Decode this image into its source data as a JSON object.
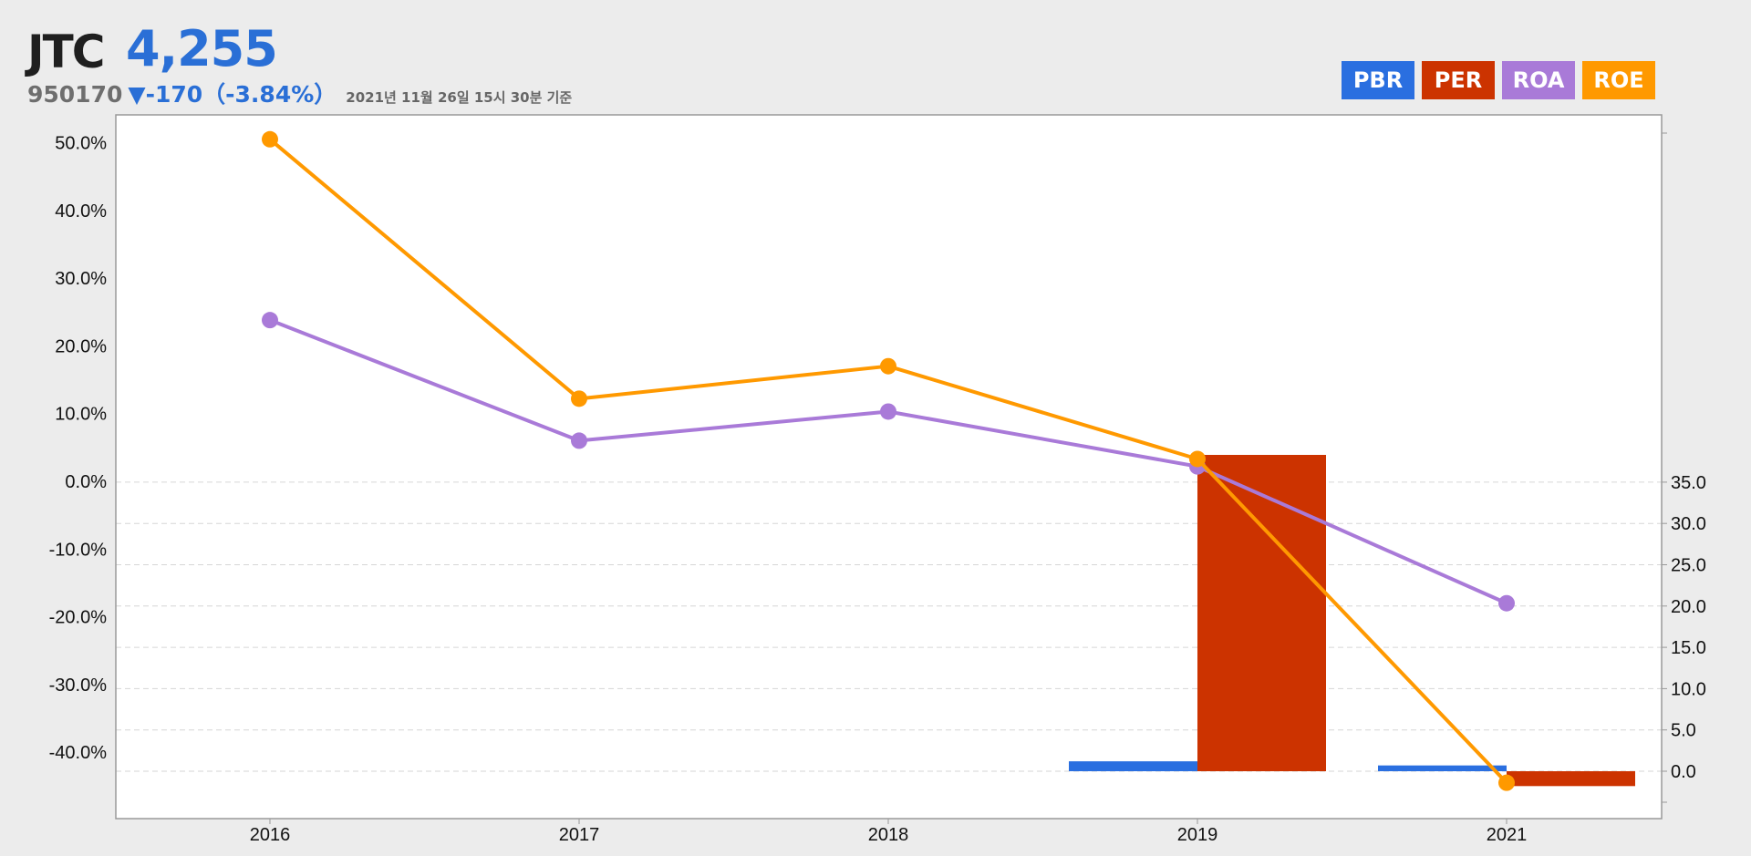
{
  "header": {
    "name": "JTC",
    "price": "4,255",
    "code": "950170",
    "change": "▼-170（-3.84%）",
    "as_of": "2021년 11월 26일 15시 30분 기준"
  },
  "legend": [
    {
      "label": "PBR",
      "color": "#2a6fe0"
    },
    {
      "label": "PER",
      "color": "#cc3300"
    },
    {
      "label": "ROA",
      "color": "#a97ad8"
    },
    {
      "label": "ROE",
      "color": "#ff9900"
    }
  ],
  "chart_data": {
    "type": "bar",
    "categories": [
      "2016",
      "2017",
      "2018",
      "2019",
      "2021"
    ],
    "left_axis": {
      "min": -50,
      "max": 50,
      "ticks": [
        "50.0%",
        "40.0%",
        "30.0%",
        "20.0%",
        "10.0%",
        "0.0%",
        "-10.0%",
        "-20.0%",
        "-30.0%",
        "-40.0%"
      ],
      "tick_values": [
        50,
        40,
        30,
        20,
        10,
        0,
        -10,
        -20,
        -30,
        -40
      ]
    },
    "right_axis": {
      "min": -2.8,
      "max": 38.5,
      "ticks": [
        "35.0",
        "30.0",
        "25.0",
        "20.0",
        "15.0",
        "10.0",
        "5.0",
        "0.0"
      ],
      "tick_values": [
        35,
        30,
        25,
        20,
        15,
        10,
        5,
        0
      ]
    },
    "bar_series": [
      {
        "name": "PBR",
        "axis": "right",
        "color": "#2a6fe0",
        "values": [
          null,
          null,
          null,
          1.2,
          0.7
        ]
      },
      {
        "name": "PER",
        "axis": "right",
        "color": "#cc3300",
        "values": [
          null,
          null,
          null,
          38.3,
          -1.8
        ]
      }
    ],
    "line_series": [
      {
        "name": "ROA",
        "axis": "left",
        "color": "#a97ad8",
        "values": [
          23.8,
          6.0,
          10.3,
          2.2,
          -18.0
        ]
      },
      {
        "name": "ROE",
        "axis": "left",
        "color": "#ff9900",
        "values": [
          50.5,
          12.2,
          17.0,
          3.3,
          -44.5
        ]
      }
    ],
    "grid": true
  }
}
